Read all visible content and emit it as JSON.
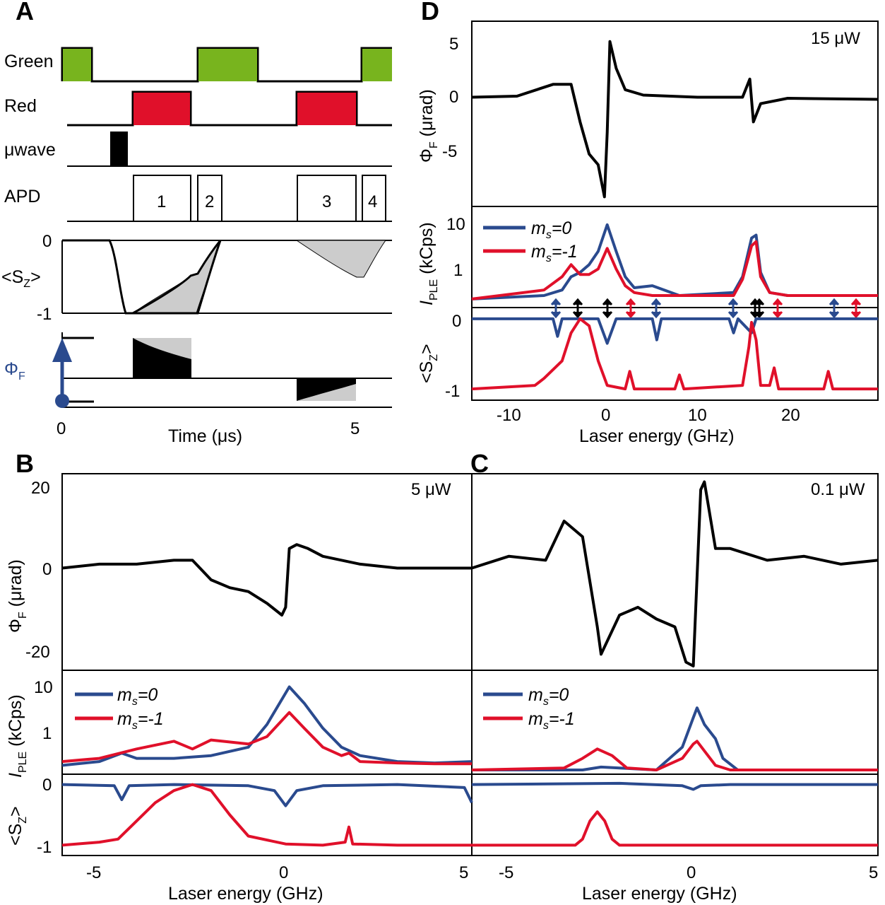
{
  "colors": {
    "green": "#78b41e",
    "red": "#e0102a",
    "blue": "#2a4a8e",
    "black": "#000000",
    "gray": "#cccccc",
    "phi_blue": "#2a4a8e"
  },
  "panelA": {
    "letter": "A",
    "rows": [
      "Green",
      "Red",
      "μwave",
      "APD"
    ],
    "apd_windows": [
      "1",
      "2",
      "3",
      "4"
    ],
    "sz_label": "<S",
    "sz_sub": "Z",
    "sz_close": ">",
    "sz_ticks": [
      "0",
      "-1"
    ],
    "phi_label": "Φ",
    "phi_sub": "F",
    "time_ticks": [
      "0",
      "5"
    ],
    "xlabel": "Time (μs)"
  },
  "panelB": {
    "letter": "B",
    "power": "5 μW",
    "phi_ticks": [
      "20",
      "0",
      "-20"
    ],
    "ple_ticks": [
      "10",
      "1"
    ],
    "sz_ticks": [
      "0",
      "-1"
    ],
    "x_ticks": [
      "-5",
      "0",
      "5"
    ],
    "xlabel": "Laser energy (GHz)"
  },
  "panelC": {
    "letter": "C",
    "power": "0.1 μW",
    "x_ticks": [
      "-5",
      "0",
      "5"
    ],
    "xlabel": "Laser energy (GHz)"
  },
  "panelD": {
    "letter": "D",
    "power": "15 μW",
    "phi_ticks": [
      "5",
      "0",
      "-5"
    ],
    "ple_ticks": [
      "10",
      "1"
    ],
    "sz_ticks": [
      "0",
      "-1"
    ],
    "x_ticks": [
      "-10",
      "0",
      "10",
      "20"
    ],
    "xlabel": "Laser energy (GHz)"
  },
  "labels": {
    "phi_y": "Φ",
    "phi_y_sub": "F",
    "phi_y_unit": " (μrad)",
    "ple_y": "I",
    "ple_y_sub": "PLE",
    "ple_y_unit": " (kCps)",
    "sz_y": "<S",
    "sz_y_sub": "Z",
    "sz_y_close": ">",
    "legend_ms0": "m",
    "legend_ms0_sub": "s",
    "legend_ms0_val": "=0",
    "legend_ms1": "m",
    "legend_ms1_sub": "s",
    "legend_ms1_val": "=-1"
  },
  "chart_data": [
    {
      "type": "line",
      "panel": "A",
      "x_ticks": [
        0,
        5
      ],
      "xlabel": "Time (μs)",
      "series": [
        {
          "name": "Green",
          "pulses_us": [
            [
              0,
              0.5
            ],
            [
              2.3,
              3.3
            ],
            [
              5.1,
              5.6
            ]
          ]
        },
        {
          "name": "Red",
          "pulses_us": [
            [
              1.2,
              2.2
            ],
            [
              4.0,
              5.0
            ]
          ]
        },
        {
          "name": "μwave",
          "pulses_us": [
            [
              0.8,
              1.1
            ]
          ]
        },
        {
          "name": "APD",
          "windows_us": [
            [
              1.2,
              2.2
            ],
            [
              2.3,
              2.7
            ],
            [
              4.0,
              5.0
            ],
            [
              5.1,
              5.5
            ]
          ]
        }
      ]
    },
    {
      "type": "line",
      "panel": "B",
      "power": "5 μW",
      "xlim": [
        -6,
        5
      ],
      "subplots": [
        {
          "ylabel": "ΦF (μrad)",
          "ylim": [
            -25,
            23
          ],
          "series": [
            {
              "name": "",
              "x": [
                -6,
                -5,
                -4,
                -3,
                -2.5,
                -2,
                -1.5,
                -1,
                -0.5,
                -0.1,
                0.0,
                0.1,
                0.3,
                0.6,
                1,
                2,
                3,
                4,
                5
              ],
              "y": [
                0,
                1,
                1,
                2,
                2,
                -3,
                -5,
                -6,
                -9,
                -12,
                -10,
                5,
                6,
                5,
                3,
                1,
                0,
                0,
                0
              ]
            }
          ]
        },
        {
          "ylabel": "IPLE (kCps)",
          "scale": "log",
          "ylim": [
            0.2,
            20
          ],
          "series": [
            {
              "name": "ms=0",
              "x": [
                -6,
                -5,
                -4.4,
                -4,
                -3,
                -2,
                -1,
                -0.5,
                0.1,
                0.5,
                1,
                1.5,
                2,
                3,
                4,
                5
              ],
              "y": [
                0.25,
                0.3,
                0.45,
                0.35,
                0.35,
                0.4,
                0.6,
                1.8,
                11,
                5,
                1.5,
                0.6,
                0.4,
                0.3,
                0.28,
                0.3
              ]
            },
            {
              "name": "ms=-1",
              "x": [
                -6,
                -5,
                -4,
                -3,
                -2.5,
                -2,
                -1,
                -0.5,
                0.1,
                0.5,
                1,
                1.5,
                1.7,
                2,
                3,
                4,
                5
              ],
              "y": [
                0.3,
                0.35,
                0.55,
                0.8,
                0.55,
                0.85,
                0.7,
                1.0,
                3.2,
                1.5,
                0.6,
                0.4,
                0.45,
                0.3,
                0.28,
                0.27,
                0.27
              ]
            }
          ]
        },
        {
          "ylabel": "<SZ>",
          "ylim": [
            -1.1,
            0.1
          ],
          "series": [
            {
              "name": "ms=0",
              "x": [
                -6,
                -4.6,
                -4.4,
                -4.2,
                -3,
                -1,
                -0.3,
                0.0,
                0.3,
                1,
                3,
                4.8,
                5
              ],
              "y": [
                0,
                -0.02,
                -0.25,
                -0.02,
                0,
                -0.02,
                -0.1,
                -0.35,
                -0.1,
                -0.02,
                0,
                -0.05,
                -0.3
              ]
            },
            {
              "name": "ms=-1",
              "x": [
                -6,
                -5,
                -4.5,
                -4,
                -3.5,
                -3,
                -2.5,
                -2,
                -1.5,
                -1,
                0,
                1,
                1.6,
                1.7,
                1.8,
                3,
                5
              ],
              "y": [
                -1,
                -0.95,
                -0.9,
                -0.6,
                -0.3,
                -0.1,
                0.0,
                -0.1,
                -0.5,
                -0.85,
                -0.98,
                -1,
                -0.95,
                -0.7,
                -0.98,
                -1,
                -1
              ]
            }
          ]
        }
      ],
      "x_ticks": [
        -5,
        0,
        5
      ],
      "xlabel": "Laser energy (GHz)"
    },
    {
      "type": "line",
      "panel": "C",
      "power": "0.1 μW",
      "xlim": [
        -6,
        5
      ],
      "subplots": [
        {
          "ylabel": "ΦF (μrad)",
          "ylim": [
            -25,
            23
          ],
          "series": [
            {
              "name": "",
              "x": [
                -6,
                -5,
                -4,
                -3.5,
                -3,
                -2.6,
                -2.5,
                -2,
                -1.5,
                -1,
                -0.5,
                -0.2,
                0.0,
                0.2,
                0.3,
                0.6,
                1,
                2,
                3,
                4,
                5
              ],
              "y": [
                0,
                3,
                2,
                12,
                8,
                -15,
                -22,
                -12,
                -10,
                -13,
                -15,
                -24,
                -25,
                20,
                22,
                5,
                5,
                2,
                3,
                1,
                2
              ]
            }
          ]
        },
        {
          "ylabel": "IPLE (kCps)",
          "scale": "log",
          "ylim": [
            0.2,
            20
          ],
          "series": [
            {
              "name": "ms=0",
              "x": [
                -6,
                -3,
                -2.5,
                -2,
                -1,
                -0.3,
                0,
                0.1,
                0.3,
                0.6,
                0.8,
                1.2,
                2,
                5
              ],
              "y": [
                0.2,
                0.2,
                0.23,
                0.22,
                0.2,
                0.6,
                2.5,
                4,
                1.8,
                0.9,
                0.35,
                0.2,
                0.2,
                0.2
              ]
            },
            {
              "name": "ms=-1",
              "x": [
                -6,
                -3.5,
                -3,
                -2.6,
                -2.2,
                -1.8,
                -1,
                -0.3,
                0,
                0.1,
                0.3,
                0.6,
                1,
                2,
                5
              ],
              "y": [
                0.2,
                0.22,
                0.35,
                0.55,
                0.4,
                0.22,
                0.2,
                0.35,
                0.7,
                0.8,
                0.5,
                0.25,
                0.2,
                0.2,
                0.2
              ]
            }
          ]
        },
        {
          "ylabel": "<SZ>",
          "ylim": [
            -1.1,
            0.1
          ],
          "series": [
            {
              "name": "ms=0",
              "x": [
                -6,
                -2,
                -0.3,
                0.0,
                0.2,
                1,
                5
              ],
              "y": [
                0,
                0.02,
                -0.02,
                -0.08,
                -0.02,
                0,
                0
              ]
            },
            {
              "name": "ms=-1",
              "x": [
                -6,
                -3.2,
                -3.0,
                -2.8,
                -2.6,
                -2.4,
                -2.2,
                -2.0,
                -1,
                5
              ],
              "y": [
                -1,
                -1,
                -0.9,
                -0.6,
                -0.45,
                -0.6,
                -0.9,
                -1,
                -1,
                -1
              ]
            }
          ]
        }
      ],
      "x_ticks": [
        -5,
        0,
        5
      ],
      "xlabel": "Laser energy (GHz)"
    },
    {
      "type": "line",
      "panel": "D",
      "power": "15 μW",
      "xlim": [
        -15,
        30
      ],
      "subplots": [
        {
          "ylabel": "ΦF (μrad)",
          "ylim": [
            -9.5,
            7
          ],
          "series": [
            {
              "name": "",
              "x": [
                -15,
                -10,
                -6,
                -4,
                -3,
                -2,
                -1,
                -0.3,
                0,
                0.3,
                1,
                2,
                4,
                10,
                15,
                15.8,
                16.2,
                17,
                20,
                30
              ],
              "y": [
                0.3,
                0.4,
                1.5,
                1.5,
                -2,
                -5,
                -6,
                -9,
                -3,
                5.5,
                3,
                1,
                0.5,
                0.3,
                0.3,
                2,
                -2,
                -0.3,
                0.2,
                0.1
              ]
            }
          ]
        },
        {
          "ylabel": "IPLE (kCps)",
          "scale": "log",
          "ylim": [
            0.2,
            25
          ],
          "series": [
            {
              "name": "ms=0",
              "x": [
                -15,
                -7,
                -5,
                -4,
                -3,
                -2,
                -1,
                0,
                1,
                2,
                3,
                5,
                8,
                14,
                15,
                16,
                16.5,
                17,
                18,
                20,
                25,
                30
              ],
              "y": [
                0.25,
                0.3,
                0.4,
                0.8,
                1.0,
                1.5,
                3,
                12,
                3,
                0.8,
                0.45,
                0.5,
                0.3,
                0.35,
                0.8,
                6,
                7,
                1,
                0.35,
                0.3,
                0.3,
                0.3
              ]
            },
            {
              "name": "ms=-1",
              "x": [
                -15,
                -7,
                -5,
                -4,
                -3,
                -2,
                -1,
                0,
                1,
                2,
                3,
                5,
                8,
                14,
                15,
                16,
                16.5,
                17,
                18,
                20,
                25,
                30
              ],
              "y": [
                0.25,
                0.4,
                0.8,
                1.5,
                0.9,
                0.9,
                1.2,
                3.5,
                1.2,
                0.5,
                0.35,
                0.3,
                0.3,
                0.3,
                0.7,
                4,
                5,
                0.8,
                0.35,
                0.3,
                0.3,
                0.3
              ]
            }
          ]
        },
        {
          "ylabel": "<SZ>",
          "ylim": [
            -1.1,
            0.1
          ],
          "series": [
            {
              "name": "ms=0",
              "x": [
                -15,
                -6,
                -5.5,
                -5,
                -1,
                0,
                1,
                5,
                5.5,
                6,
                13.5,
                14,
                14.5,
                16,
                16.5,
                17,
                30
              ],
              "y": [
                0,
                0,
                -0.25,
                0,
                0,
                -0.35,
                0,
                0,
                -0.3,
                0,
                0,
                -0.2,
                0,
                -0.2,
                0,
                0,
                0
              ]
            },
            {
              "name": "ms=-1",
              "x": [
                -15,
                -8,
                -7,
                -5,
                -4,
                -3,
                -2,
                -1,
                0,
                2,
                2.5,
                3,
                7.5,
                8,
                8.5,
                15,
                15.7,
                16,
                16.5,
                17,
                18,
                18.5,
                19,
                24,
                24.5,
                25,
                30
              ],
              "y": [
                -1,
                -0.95,
                -0.85,
                -0.6,
                -0.2,
                0,
                -0.1,
                -0.6,
                -0.95,
                -1,
                -0.75,
                -1,
                -1,
                -0.8,
                -1,
                -0.95,
                -0.4,
                -0.05,
                -0.3,
                -0.95,
                -0.95,
                -0.7,
                -1,
                -1,
                -0.75,
                -1,
                -1
              ]
            }
          ]
        }
      ],
      "x_ticks": [
        -10,
        0,
        10,
        20
      ],
      "xlabel": "Laser energy (GHz)"
    }
  ]
}
